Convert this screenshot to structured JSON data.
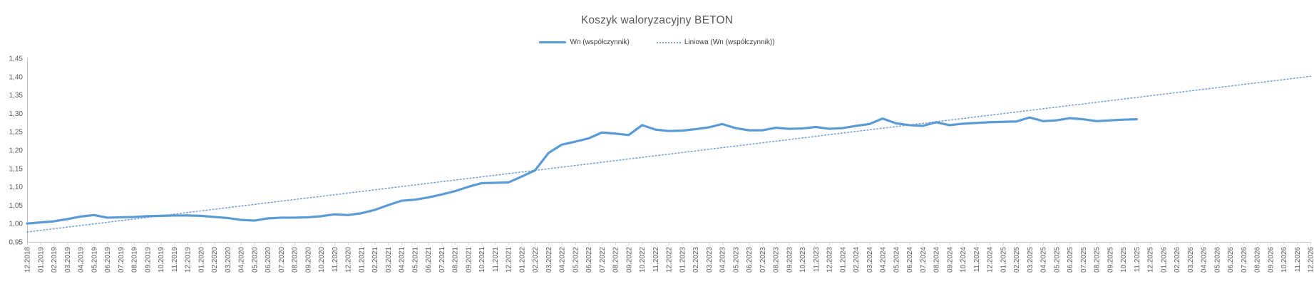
{
  "chart": {
    "title": "Koszyk waloryzacyjny BETON",
    "legend": {
      "series_label": "Wn (współczynnik)",
      "trendline_label": "Liniowa (Wn (współczynnik))"
    },
    "colors": {
      "series": "#5B9BD5",
      "trendline": "#7AA4D6",
      "text": "#595959",
      "axis": "#BFBFBF",
      "tick": "#D9D9D9"
    }
  },
  "chart_data": {
    "type": "line",
    "title": "Koszyk waloryzacyjny BETON",
    "xlabel": "",
    "ylabel": "",
    "ylim": [
      0.95,
      1.45
    ],
    "grid": false,
    "legend_position": "top-center",
    "y_tick_labels": [
      "0,95",
      "1,00",
      "1,05",
      "1,10",
      "1,15",
      "1,20",
      "1,25",
      "1,30",
      "1,35",
      "1,40",
      "1,45"
    ],
    "y_tick_values": [
      0.95,
      1.0,
      1.05,
      1.1,
      1.15,
      1.2,
      1.25,
      1.3,
      1.35,
      1.4,
      1.45
    ],
    "x_labels": [
      "12.2018",
      "01.2019",
      "02.2019",
      "03.2019",
      "04.2019",
      "05.2019",
      "06.2019",
      "07.2019",
      "08.2019",
      "09.2019",
      "10.2019",
      "11.2019",
      "12.2019",
      "01.2020",
      "02.2020",
      "03.2020",
      "04.2020",
      "05.2020",
      "06.2020",
      "07.2020",
      "08.2020",
      "09.2020",
      "10.2020",
      "11.2020",
      "12.2020",
      "01.2021",
      "02.2021",
      "03.2021",
      "04.2021",
      "05.2021",
      "06.2021",
      "07.2021",
      "08.2021",
      "09.2021",
      "10.2021",
      "11.2021",
      "12.2021",
      "01.2022",
      "02.2022",
      "03.2022",
      "04.2022",
      "05.2022",
      "06.2022",
      "07.2022",
      "08.2022",
      "09.2022",
      "10.2022",
      "11.2022",
      "12.2022",
      "01.2023",
      "02.2023",
      "03.2023",
      "04.2023",
      "05.2023",
      "06.2023",
      "07.2023",
      "08.2023",
      "09.2023",
      "10.2023",
      "11.2023",
      "12.2023",
      "01.2024",
      "02.2024",
      "03.2024",
      "04.2024",
      "05.2024",
      "06.2024",
      "07.2024",
      "08.2024",
      "09.2024",
      "10.2024",
      "11.2024",
      "12.2024",
      "01.2025",
      "02.2025",
      "03.2025",
      "04.2025",
      "05.2025",
      "06.2025",
      "07.2025",
      "08.2025",
      "09.2025",
      "10.2025",
      "11.2025",
      "12.2025",
      "01.2026",
      "02.2026",
      "03.2026",
      "04.2026",
      "05.2026",
      "06.2026",
      "07.2026",
      "08.2026",
      "09.2026",
      "10.2026",
      "11.2026",
      "12.2026"
    ],
    "series": [
      {
        "name": "Wn (współczynnik)",
        "style": "solid",
        "values": [
          1.0,
          1.003,
          1.006,
          1.012,
          1.019,
          1.023,
          1.016,
          1.017,
          1.018,
          1.02,
          1.021,
          1.022,
          1.022,
          1.021,
          1.018,
          1.015,
          1.01,
          1.008,
          1.014,
          1.016,
          1.016,
          1.017,
          1.02,
          1.025,
          1.023,
          1.028,
          1.037,
          1.05,
          1.062,
          1.065,
          1.071,
          1.079,
          1.088,
          1.1,
          1.11,
          1.111,
          1.112,
          1.128,
          1.145,
          1.192,
          1.215,
          1.223,
          1.232,
          1.248,
          1.245,
          1.241,
          1.268,
          1.256,
          1.252,
          1.253,
          1.257,
          1.262,
          1.271,
          1.26,
          1.254,
          1.254,
          1.261,
          1.258,
          1.259,
          1.263,
          1.258,
          1.26,
          1.266,
          1.271,
          1.286,
          1.273,
          1.268,
          1.266,
          1.276,
          1.268,
          1.272,
          1.274,
          1.276,
          1.277,
          1.278,
          1.289,
          1.279,
          1.281,
          1.287,
          1.284,
          1.279,
          1.281,
          1.283,
          1.284
        ]
      },
      {
        "name": "Liniowa (Wn (współczynnik))",
        "style": "dotted-trendline",
        "trend_start_value": 0.977,
        "trend_end_value": 1.401,
        "trend_start_index": 0,
        "trend_end_index": 96
      }
    ]
  }
}
